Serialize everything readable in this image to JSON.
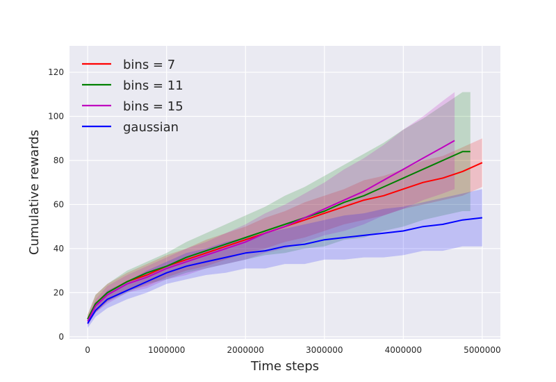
{
  "chart_data": {
    "type": "line",
    "xlabel": "Time steps",
    "ylabel": "Cumulative rewards",
    "xlim": [
      -230000,
      5230000
    ],
    "ylim": [
      -1,
      132
    ],
    "xticks": [
      0,
      1000000,
      2000000,
      3000000,
      4000000,
      5000000
    ],
    "xtick_labels": [
      "0",
      "1000000",
      "2000000",
      "3000000",
      "4000000",
      "5000000"
    ],
    "yticks": [
      0,
      20,
      40,
      60,
      80,
      100,
      120
    ],
    "ytick_labels": [
      "0",
      "20",
      "40",
      "60",
      "80",
      "100",
      "120"
    ],
    "grid": true,
    "legend_placement": "top-left",
    "background_color": "#EAEAF2",
    "series": [
      {
        "name": "bins = 7",
        "color": "#FF0000",
        "x": [
          0,
          100000,
          250000,
          500000,
          750000,
          1000000,
          1250000,
          1500000,
          1750000,
          2000000,
          2250000,
          2500000,
          2750000,
          3000000,
          3250000,
          3500000,
          3750000,
          4000000,
          4250000,
          4500000,
          4750000,
          5000000
        ],
        "y": [
          8,
          15,
          20,
          25,
          28,
          32,
          35,
          38,
          41,
          44,
          47,
          50,
          53,
          56,
          59,
          62,
          64,
          67,
          70,
          72,
          75,
          79
        ],
        "band": [
          2,
          4,
          4,
          4,
          5,
          5,
          5,
          6,
          6,
          6,
          7,
          7,
          8,
          8,
          8,
          9,
          9,
          9,
          10,
          10,
          11,
          11
        ]
      },
      {
        "name": "bins = 11",
        "color": "#008000",
        "x": [
          0,
          100000,
          250000,
          500000,
          750000,
          1000000,
          1250000,
          1500000,
          1750000,
          2000000,
          2250000,
          2500000,
          2750000,
          3000000,
          3250000,
          3500000,
          3750000,
          4000000,
          4250000,
          4500000,
          4750000,
          4850000
        ],
        "y": [
          8,
          15,
          20,
          25,
          29,
          32,
          36,
          39,
          42,
          45,
          48,
          51,
          54,
          57,
          61,
          64,
          68,
          72,
          76,
          80,
          84,
          84
        ],
        "band": [
          2,
          4,
          4,
          5,
          5,
          6,
          7,
          8,
          9,
          10,
          11,
          13,
          14,
          16,
          17,
          19,
          20,
          22,
          23,
          25,
          27,
          27
        ]
      },
      {
        "name": "bins = 15",
        "color": "#BF00BF",
        "x": [
          0,
          100000,
          250000,
          500000,
          750000,
          1000000,
          1250000,
          1500000,
          1750000,
          2000000,
          2250000,
          2500000,
          2750000,
          3000000,
          3250000,
          3500000,
          3750000,
          4000000,
          4250000,
          4500000,
          4650000
        ],
        "y": [
          7,
          14,
          19,
          24,
          27,
          31,
          34,
          37,
          40,
          43,
          47,
          50,
          54,
          58,
          62,
          66,
          71,
          76,
          81,
          86,
          89
        ],
        "band": [
          2,
          3,
          4,
          4,
          5,
          5,
          6,
          6,
          7,
          8,
          9,
          10,
          11,
          12,
          14,
          15,
          16,
          18,
          19,
          21,
          22
        ]
      },
      {
        "name": "gaussian",
        "color": "#0000FF",
        "x": [
          0,
          100000,
          250000,
          500000,
          750000,
          1000000,
          1250000,
          1500000,
          1750000,
          2000000,
          2250000,
          2500000,
          2750000,
          3000000,
          3250000,
          3500000,
          3750000,
          4000000,
          4250000,
          4500000,
          4750000,
          5000000
        ],
        "y": [
          6,
          12,
          17,
          21,
          25,
          29,
          32,
          34,
          36,
          38,
          39,
          41,
          42,
          44,
          45,
          46,
          47,
          48,
          50,
          51,
          53,
          54
        ],
        "band": [
          2,
          3,
          4,
          4,
          5,
          5,
          6,
          6,
          7,
          7,
          8,
          8,
          9,
          9,
          10,
          10,
          11,
          11,
          11,
          12,
          12,
          13
        ]
      }
    ]
  }
}
